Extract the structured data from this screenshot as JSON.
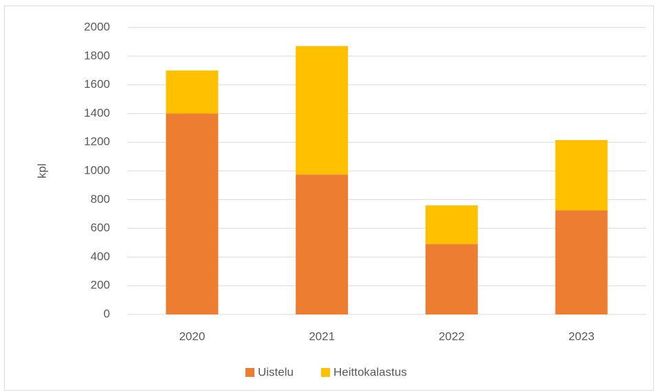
{
  "chart_data": {
    "type": "stacked_bar",
    "y_label": "kpl",
    "categories": [
      "2020",
      "2021",
      "2022",
      "2023"
    ],
    "series": [
      {
        "name": "Uistelu",
        "color": "#ed7d31",
        "values": [
          1400,
          975,
          490,
          725
        ]
      },
      {
        "name": "Heittokalastus",
        "color": "#ffc000",
        "values": [
          300,
          895,
          270,
          490
        ]
      }
    ],
    "ylim": [
      0,
      2000
    ],
    "yticks": [
      0,
      200,
      400,
      600,
      800,
      1000,
      1200,
      1400,
      1600,
      1800,
      2000
    ],
    "grid": true,
    "legend": "bottom"
  }
}
